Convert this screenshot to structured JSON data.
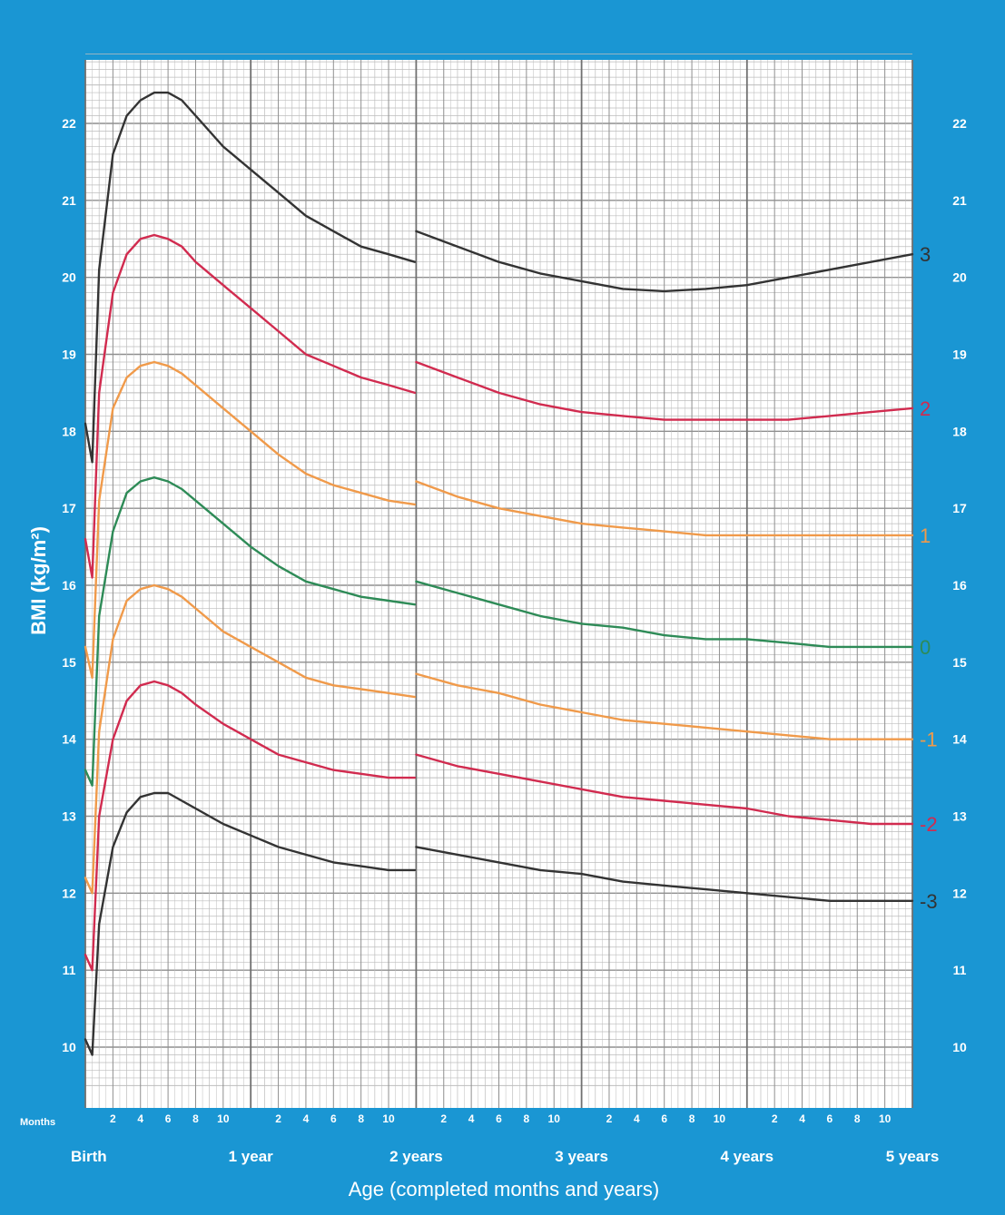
{
  "colors": {
    "frame_blue": "#1a96d3",
    "grid_major": "#8f8f8f",
    "grid_minor": "#bdbdbd",
    "line_sd3": "#333333",
    "line_sd2": "#d12b4f",
    "line_sd1": "#f09a4a",
    "line_sd0": "#2e8b57"
  },
  "chart_data": {
    "type": "line",
    "title": "",
    "xlabel": "Age (completed months and years)",
    "ylabel": "BMI (kg/m²)",
    "x_unit": "months",
    "xlim": [
      0,
      60
    ],
    "ylim": [
      9.5,
      22.9
    ],
    "months_label": "Months",
    "month_tick_labels": [
      "2",
      "4",
      "6",
      "8",
      "10"
    ],
    "year_tick_labels": [
      {
        "month": 0,
        "label": "Birth"
      },
      {
        "month": 12,
        "label": "1 year"
      },
      {
        "month": 24,
        "label": "2 years"
      },
      {
        "month": 36,
        "label": "3 years"
      },
      {
        "month": 48,
        "label": "4 years"
      },
      {
        "month": 60,
        "label": "5 years"
      }
    ],
    "y_ticks": [
      10,
      11,
      12,
      13,
      14,
      15,
      16,
      17,
      18,
      19,
      20,
      21,
      22
    ],
    "grid": true,
    "series": [
      {
        "name": "3",
        "color_key": "line_sd3",
        "points": [
          [
            0,
            18.1
          ],
          [
            0.5,
            17.6
          ],
          [
            1,
            20.1
          ],
          [
            2,
            21.6
          ],
          [
            3,
            22.1
          ],
          [
            4,
            22.3
          ],
          [
            5,
            22.4
          ],
          [
            6,
            22.4
          ],
          [
            7,
            22.3
          ],
          [
            8,
            22.1
          ],
          [
            10,
            21.7
          ],
          [
            12,
            21.4
          ],
          [
            14,
            21.1
          ],
          [
            16,
            20.8
          ],
          [
            18,
            20.6
          ],
          [
            20,
            20.4
          ],
          [
            22,
            20.3
          ],
          [
            23.9,
            20.2
          ],
          [
            24,
            20.6
          ],
          [
            27,
            20.4
          ],
          [
            30,
            20.2
          ],
          [
            33,
            20.05
          ],
          [
            36,
            19.95
          ],
          [
            39,
            19.85
          ],
          [
            42,
            19.82
          ],
          [
            45,
            19.85
          ],
          [
            48,
            19.9
          ],
          [
            51,
            20.0
          ],
          [
            54,
            20.1
          ],
          [
            57,
            20.2
          ],
          [
            60,
            20.3
          ]
        ]
      },
      {
        "name": "2",
        "color_key": "line_sd2",
        "points": [
          [
            0,
            16.6
          ],
          [
            0.5,
            16.1
          ],
          [
            1,
            18.5
          ],
          [
            2,
            19.8
          ],
          [
            3,
            20.3
          ],
          [
            4,
            20.5
          ],
          [
            5,
            20.55
          ],
          [
            6,
            20.5
          ],
          [
            7,
            20.4
          ],
          [
            8,
            20.2
          ],
          [
            10,
            19.9
          ],
          [
            12,
            19.6
          ],
          [
            14,
            19.3
          ],
          [
            16,
            19.0
          ],
          [
            18,
            18.85
          ],
          [
            20,
            18.7
          ],
          [
            22,
            18.6
          ],
          [
            23.9,
            18.5
          ],
          [
            24,
            18.9
          ],
          [
            27,
            18.7
          ],
          [
            30,
            18.5
          ],
          [
            33,
            18.35
          ],
          [
            36,
            18.25
          ],
          [
            39,
            18.2
          ],
          [
            42,
            18.15
          ],
          [
            45,
            18.15
          ],
          [
            48,
            18.15
          ],
          [
            51,
            18.15
          ],
          [
            54,
            18.2
          ],
          [
            57,
            18.25
          ],
          [
            60,
            18.3
          ]
        ]
      },
      {
        "name": "1",
        "color_key": "line_sd1",
        "points": [
          [
            0,
            15.2
          ],
          [
            0.5,
            14.8
          ],
          [
            1,
            17.1
          ],
          [
            2,
            18.3
          ],
          [
            3,
            18.7
          ],
          [
            4,
            18.85
          ],
          [
            5,
            18.9
          ],
          [
            6,
            18.85
          ],
          [
            7,
            18.75
          ],
          [
            8,
            18.6
          ],
          [
            10,
            18.3
          ],
          [
            12,
            18.0
          ],
          [
            14,
            17.7
          ],
          [
            16,
            17.45
          ],
          [
            18,
            17.3
          ],
          [
            20,
            17.2
          ],
          [
            22,
            17.1
          ],
          [
            23.9,
            17.05
          ],
          [
            24,
            17.35
          ],
          [
            27,
            17.15
          ],
          [
            30,
            17.0
          ],
          [
            33,
            16.9
          ],
          [
            36,
            16.8
          ],
          [
            39,
            16.75
          ],
          [
            42,
            16.7
          ],
          [
            45,
            16.65
          ],
          [
            48,
            16.65
          ],
          [
            51,
            16.65
          ],
          [
            54,
            16.65
          ],
          [
            57,
            16.65
          ],
          [
            60,
            16.65
          ]
        ]
      },
      {
        "name": "0",
        "color_key": "line_sd0",
        "points": [
          [
            0,
            13.6
          ],
          [
            0.5,
            13.4
          ],
          [
            1,
            15.6
          ],
          [
            2,
            16.7
          ],
          [
            3,
            17.2
          ],
          [
            4,
            17.35
          ],
          [
            5,
            17.4
          ],
          [
            6,
            17.35
          ],
          [
            7,
            17.25
          ],
          [
            8,
            17.1
          ],
          [
            10,
            16.8
          ],
          [
            12,
            16.5
          ],
          [
            14,
            16.25
          ],
          [
            16,
            16.05
          ],
          [
            18,
            15.95
          ],
          [
            20,
            15.85
          ],
          [
            22,
            15.8
          ],
          [
            23.9,
            15.75
          ],
          [
            24,
            16.05
          ],
          [
            27,
            15.9
          ],
          [
            30,
            15.75
          ],
          [
            33,
            15.6
          ],
          [
            36,
            15.5
          ],
          [
            39,
            15.45
          ],
          [
            42,
            15.35
          ],
          [
            45,
            15.3
          ],
          [
            48,
            15.3
          ],
          [
            51,
            15.25
          ],
          [
            54,
            15.2
          ],
          [
            57,
            15.2
          ],
          [
            60,
            15.2
          ]
        ]
      },
      {
        "name": "-1",
        "color_key": "line_sd1",
        "points": [
          [
            0,
            12.2
          ],
          [
            0.5,
            12.0
          ],
          [
            1,
            14.1
          ],
          [
            2,
            15.3
          ],
          [
            3,
            15.8
          ],
          [
            4,
            15.95
          ],
          [
            5,
            16.0
          ],
          [
            6,
            15.95
          ],
          [
            7,
            15.85
          ],
          [
            8,
            15.7
          ],
          [
            10,
            15.4
          ],
          [
            12,
            15.2
          ],
          [
            14,
            15.0
          ],
          [
            16,
            14.8
          ],
          [
            18,
            14.7
          ],
          [
            20,
            14.65
          ],
          [
            22,
            14.6
          ],
          [
            23.9,
            14.55
          ],
          [
            24,
            14.85
          ],
          [
            27,
            14.7
          ],
          [
            30,
            14.6
          ],
          [
            33,
            14.45
          ],
          [
            36,
            14.35
          ],
          [
            39,
            14.25
          ],
          [
            42,
            14.2
          ],
          [
            45,
            14.15
          ],
          [
            48,
            14.1
          ],
          [
            51,
            14.05
          ],
          [
            54,
            14.0
          ],
          [
            57,
            14.0
          ],
          [
            60,
            14.0
          ]
        ]
      },
      {
        "name": "-2",
        "color_key": "line_sd2",
        "points": [
          [
            0,
            11.2
          ],
          [
            0.5,
            11.0
          ],
          [
            1,
            13.0
          ],
          [
            2,
            14.0
          ],
          [
            3,
            14.5
          ],
          [
            4,
            14.7
          ],
          [
            5,
            14.75
          ],
          [
            6,
            14.7
          ],
          [
            7,
            14.6
          ],
          [
            8,
            14.45
          ],
          [
            10,
            14.2
          ],
          [
            12,
            14.0
          ],
          [
            14,
            13.8
          ],
          [
            16,
            13.7
          ],
          [
            18,
            13.6
          ],
          [
            20,
            13.55
          ],
          [
            22,
            13.5
          ],
          [
            23.9,
            13.5
          ],
          [
            24,
            13.8
          ],
          [
            27,
            13.65
          ],
          [
            30,
            13.55
          ],
          [
            33,
            13.45
          ],
          [
            36,
            13.35
          ],
          [
            39,
            13.25
          ],
          [
            42,
            13.2
          ],
          [
            45,
            13.15
          ],
          [
            48,
            13.1
          ],
          [
            51,
            13.0
          ],
          [
            54,
            12.95
          ],
          [
            57,
            12.9
          ],
          [
            60,
            12.9
          ]
        ]
      },
      {
        "name": "-3",
        "color_key": "line_sd3",
        "points": [
          [
            0,
            10.1
          ],
          [
            0.5,
            9.9
          ],
          [
            1,
            11.6
          ],
          [
            2,
            12.6
          ],
          [
            3,
            13.05
          ],
          [
            4,
            13.25
          ],
          [
            5,
            13.3
          ],
          [
            6,
            13.3
          ],
          [
            7,
            13.2
          ],
          [
            8,
            13.1
          ],
          [
            10,
            12.9
          ],
          [
            12,
            12.75
          ],
          [
            14,
            12.6
          ],
          [
            16,
            12.5
          ],
          [
            18,
            12.4
          ],
          [
            20,
            12.35
          ],
          [
            22,
            12.3
          ],
          [
            23.9,
            12.3
          ],
          [
            24,
            12.6
          ],
          [
            27,
            12.5
          ],
          [
            30,
            12.4
          ],
          [
            33,
            12.3
          ],
          [
            36,
            12.25
          ],
          [
            39,
            12.15
          ],
          [
            42,
            12.1
          ],
          [
            45,
            12.05
          ],
          [
            48,
            12.0
          ],
          [
            51,
            11.95
          ],
          [
            54,
            11.9
          ],
          [
            57,
            11.9
          ],
          [
            60,
            11.9
          ]
        ]
      }
    ]
  }
}
